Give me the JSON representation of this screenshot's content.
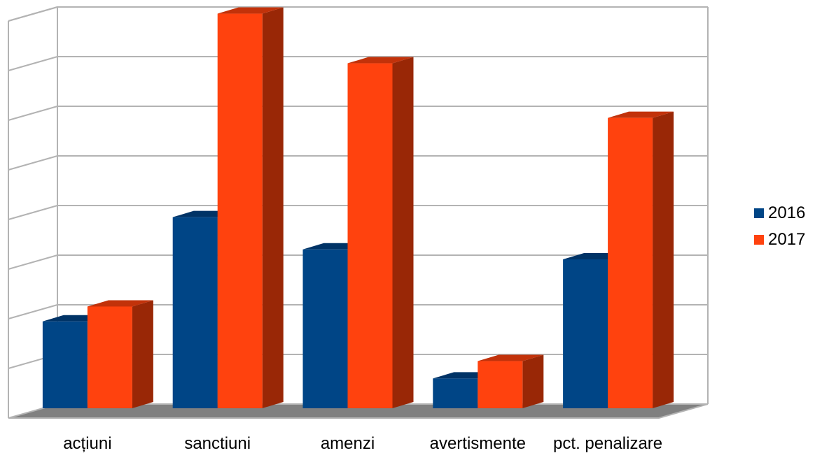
{
  "chart_data": {
    "type": "bar",
    "title": "",
    "xlabel": "",
    "ylabel": "",
    "categories": [
      "acțiuni",
      "sanctiuni",
      "amenzi",
      "avertismente",
      "pct. penalizare"
    ],
    "series": [
      {
        "name": "2016",
        "color": "#004586",
        "values": [
          17.5,
          38.5,
          32,
          6,
          30
        ]
      },
      {
        "name": "2017",
        "color": "#ff420e",
        "values": [
          20.5,
          79.5,
          69.5,
          9.5,
          58.5
        ]
      }
    ],
    "ylim": [
      0,
      80
    ],
    "grid": true,
    "legend_position": "right"
  }
}
